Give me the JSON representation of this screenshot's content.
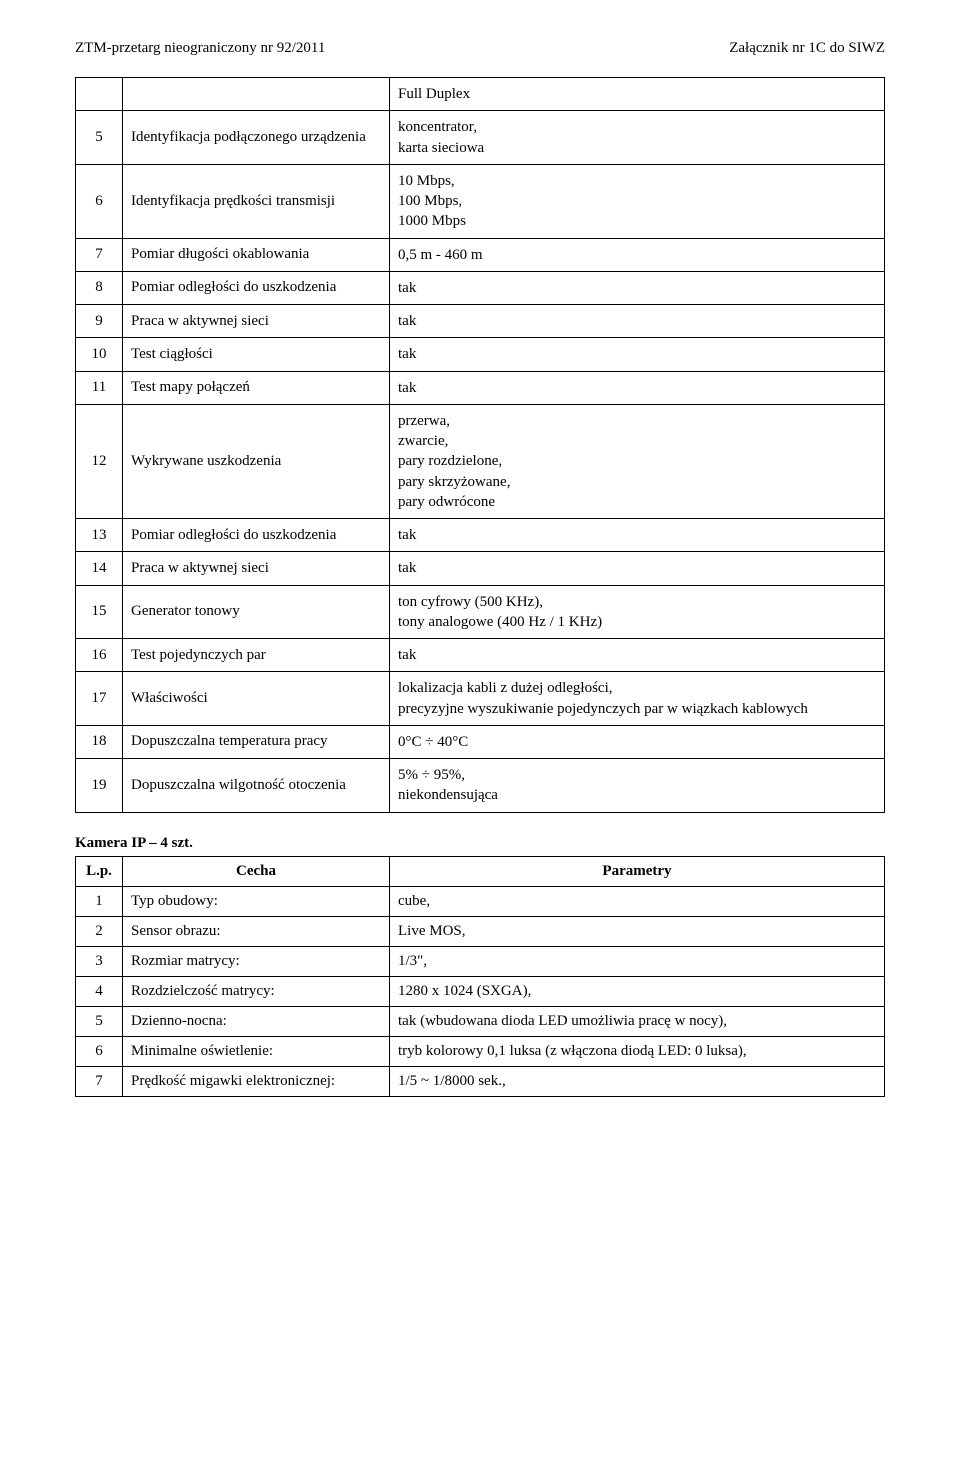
{
  "header": {
    "left": "ZTM-przetarg nieograniczony nr 92/2011",
    "right": "Załącznik nr 1C do SIWZ"
  },
  "table1": {
    "row0_val": "Full Duplex",
    "rows": [
      {
        "n": "5",
        "label": "Identyfikacja podłączonego urządzenia",
        "val": "koncentrator,\nkarta sieciowa"
      },
      {
        "n": "6",
        "label": "Identyfikacja prędkości transmisji",
        "val": "10 Mbps,\n100 Mbps,\n1000 Mbps"
      },
      {
        "n": "7",
        "label": "Pomiar długości okablowania",
        "val": "0,5 m - 460 m"
      },
      {
        "n": "8",
        "label": "Pomiar odległości do uszkodzenia",
        "val": "tak"
      },
      {
        "n": "9",
        "label": "Praca w aktywnej sieci",
        "val": "tak"
      },
      {
        "n": "10",
        "label": "Test ciągłości",
        "val": "tak"
      },
      {
        "n": "11",
        "label": "Test mapy połączeń",
        "val": "tak"
      },
      {
        "n": "12",
        "label": "Wykrywane uszkodzenia",
        "val": "przerwa,\nzwarcie,\npary rozdzielone,\npary skrzyżowane,\npary odwrócone"
      },
      {
        "n": "13",
        "label": "Pomiar odległości do uszkodzenia",
        "val": "tak"
      },
      {
        "n": "14",
        "label": "Praca w aktywnej sieci",
        "val": "tak"
      },
      {
        "n": "15",
        "label": "Generator tonowy",
        "val": "ton cyfrowy (500 KHz),\ntony analogowe (400 Hz / 1 KHz)"
      },
      {
        "n": "16",
        "label": "Test pojedynczych par",
        "val": "tak"
      },
      {
        "n": "17",
        "label": "Właściwości",
        "val": "lokalizacja kabli z dużej odległości,\nprecyzyjne wyszukiwanie pojedynczych par w wiązkach kablowych"
      },
      {
        "n": "18",
        "label": "Dopuszczalna temperatura pracy",
        "val": "0°C ÷ 40°C"
      },
      {
        "n": "19",
        "label": "Dopuszczalna wilgotność otoczenia",
        "val": "5% ÷ 95%,\nniekondensująca"
      }
    ]
  },
  "section2": {
    "title": "Kamera IP – 4 szt.",
    "lp": "L.p.",
    "cecha": "Cecha",
    "param": "Parametry",
    "rows": [
      {
        "n": "1",
        "label": "Typ obudowy:",
        "val": "cube,"
      },
      {
        "n": "2",
        "label": "Sensor obrazu:",
        "val": "Live MOS,"
      },
      {
        "n": "3",
        "label": "Rozmiar matrycy:",
        "val": "1/3\","
      },
      {
        "n": "4",
        "label": "Rozdzielczość matrycy:",
        "val": "1280 x 1024 (SXGA),"
      },
      {
        "n": "5",
        "label": "Dzienno-nocna:",
        "val": "tak (wbudowana dioda LED umożliwia pracę w nocy),"
      },
      {
        "n": "6",
        "label": "Minimalne oświetlenie:",
        "val": "tryb kolorowy 0,1 luksa (z włączona diodą LED: 0 luksa),"
      },
      {
        "n": "7",
        "label": "Prędkość migawki elektronicznej:",
        "val": "1/5 ~ 1/8000 sek.,"
      }
    ]
  }
}
